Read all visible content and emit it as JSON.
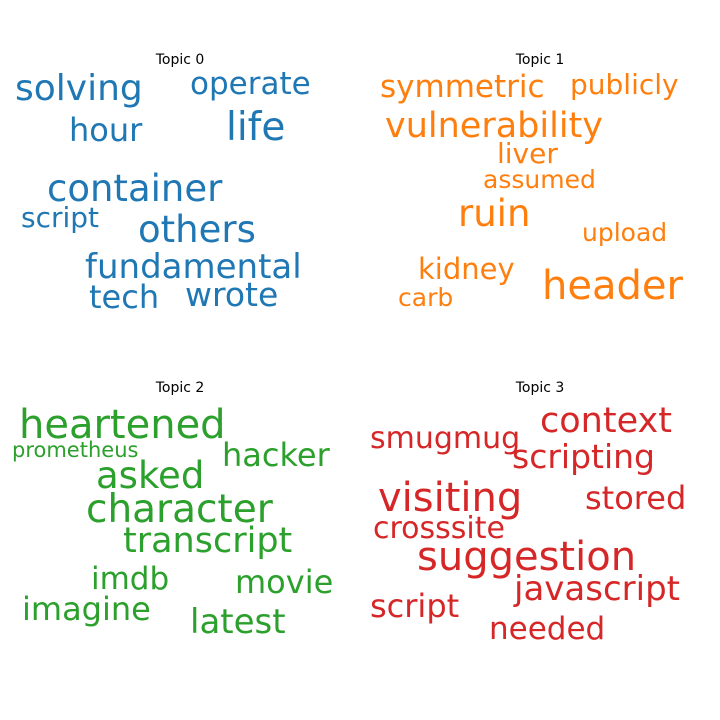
{
  "topics": [
    {
      "title": "Topic 0",
      "color": "#1f77b4",
      "words": [
        "solving",
        "operate",
        "hour",
        "life",
        "container",
        "script",
        "others",
        "fundamental",
        "tech",
        "wrote"
      ]
    },
    {
      "title": "Topic 1",
      "color": "#ff7f0e",
      "words": [
        "symmetric",
        "publicly",
        "vulnerability",
        "liver",
        "assumed",
        "ruin",
        "upload",
        "kidney",
        "header",
        "carb"
      ]
    },
    {
      "title": "Topic 2",
      "color": "#2ca02c",
      "words": [
        "heartened",
        "prometheus",
        "hacker",
        "asked",
        "character",
        "transcript",
        "imdb",
        "movie",
        "imagine",
        "latest"
      ]
    },
    {
      "title": "Topic 3",
      "color": "#d62728",
      "words": [
        "context",
        "smugmug",
        "scripting",
        "visiting",
        "stored",
        "crosssite",
        "suggestion",
        "javascript",
        "script",
        "needed"
      ]
    }
  ]
}
